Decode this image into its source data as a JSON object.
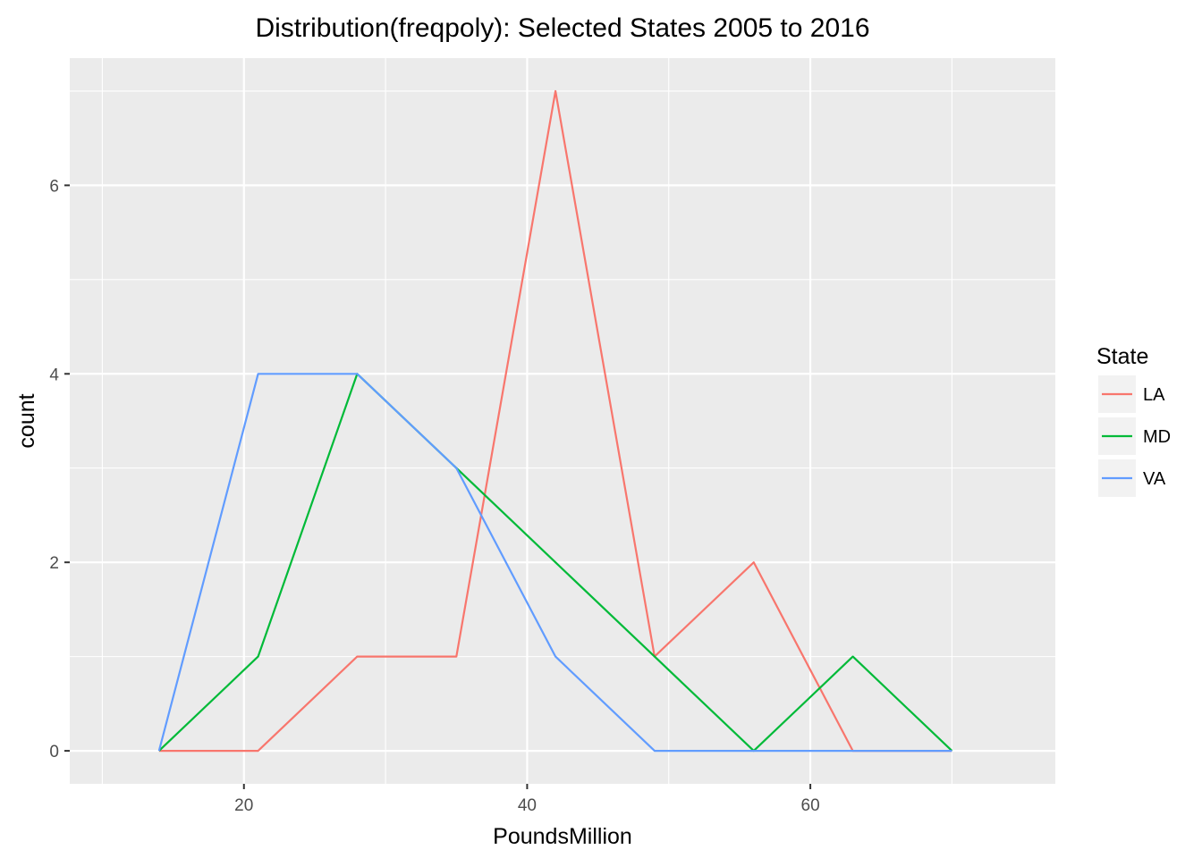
{
  "chart_data": {
    "type": "line",
    "title": "Distribution(freqpoly): Selected States 2005 to 2016",
    "xlabel": "PoundsMillion",
    "ylabel": "count",
    "xlim": [
      7.7,
      77.3
    ],
    "ylim": [
      -0.35,
      7.35
    ],
    "x_ticks": [
      20,
      40,
      60
    ],
    "y_ticks": [
      0,
      2,
      4,
      6
    ],
    "grid": true,
    "legend": {
      "title": "State",
      "position": "right"
    },
    "x": [
      14,
      21,
      28,
      35,
      42,
      49,
      56,
      63,
      70
    ],
    "series": [
      {
        "name": "LA",
        "color": "#F8766D",
        "values": [
          0,
          0,
          1,
          1,
          7,
          1,
          2,
          0,
          0
        ]
      },
      {
        "name": "MD",
        "color": "#00BA38",
        "values": [
          0,
          1,
          4,
          3,
          2,
          1,
          0,
          1,
          0
        ]
      },
      {
        "name": "VA",
        "color": "#619CFF",
        "values": [
          0,
          4,
          4,
          3,
          1,
          0,
          0,
          0,
          0
        ]
      }
    ]
  }
}
